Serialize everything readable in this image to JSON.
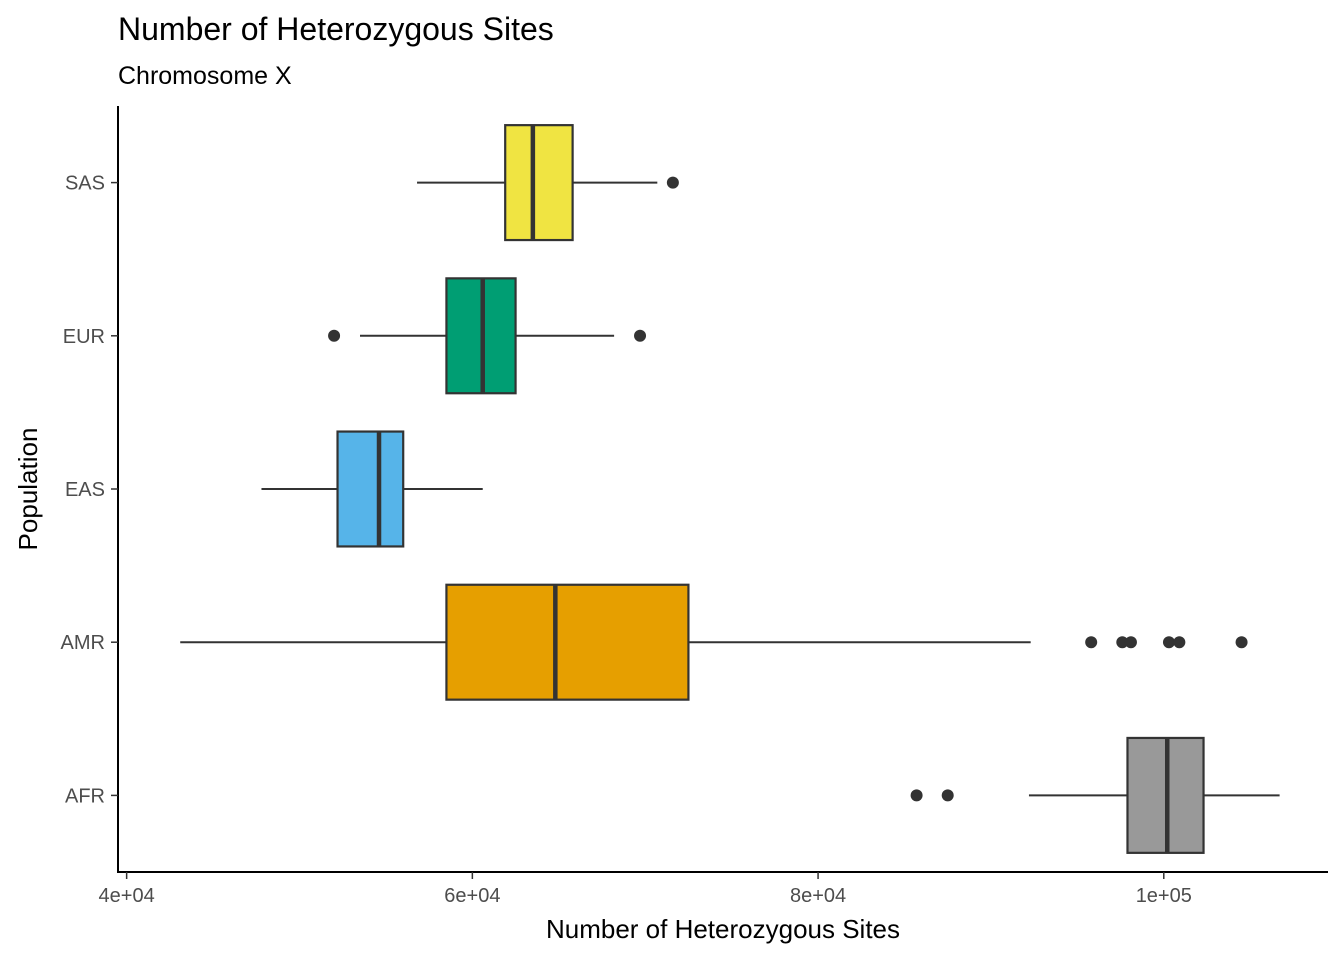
{
  "chart_data": {
    "type": "boxplot",
    "orientation": "horizontal",
    "title": "Number of Heterozygous Sites",
    "subtitle": "Chromosome X",
    "xlabel": "Number of Heterozygous Sites",
    "ylabel": "Population",
    "xlim": [
      39500,
      109500
    ],
    "x_ticks": [
      {
        "value": 40000,
        "label": "4e+04"
      },
      {
        "value": 60000,
        "label": "6e+04"
      },
      {
        "value": 80000,
        "label": "8e+04"
      },
      {
        "value": 100000,
        "label": "1e+05"
      }
    ],
    "categories": [
      "AFR",
      "AMR",
      "EAS",
      "EUR",
      "SAS"
    ],
    "grid": false,
    "legend": "none",
    "series": [
      {
        "category": "AFR",
        "color": "#999999",
        "whisker_low": 92200,
        "q1": 97900,
        "median": 100200,
        "q3": 102300,
        "whisker_high": 106700,
        "outliers": [
          85700,
          87500
        ]
      },
      {
        "category": "AMR",
        "color": "#E69F00",
        "whisker_low": 43100,
        "q1": 58500,
        "median": 64800,
        "q3": 72500,
        "whisker_high": 92300,
        "outliers": [
          95800,
          97600,
          98100,
          100300,
          100900,
          104500
        ]
      },
      {
        "category": "EAS",
        "color": "#56B4E9",
        "whisker_low": 47800,
        "q1": 52200,
        "median": 54600,
        "q3": 56000,
        "whisker_high": 60600,
        "outliers": []
      },
      {
        "category": "EUR",
        "color": "#009E73",
        "whisker_low": 53500,
        "q1": 58500,
        "median": 60600,
        "q3": 62500,
        "whisker_high": 68200,
        "outliers": [
          52000,
          69700
        ]
      },
      {
        "category": "SAS",
        "color": "#F0E442",
        "whisker_low": 56800,
        "q1": 61900,
        "median": 63500,
        "q3": 65800,
        "whisker_high": 70700,
        "outliers": [
          71600
        ]
      }
    ]
  }
}
